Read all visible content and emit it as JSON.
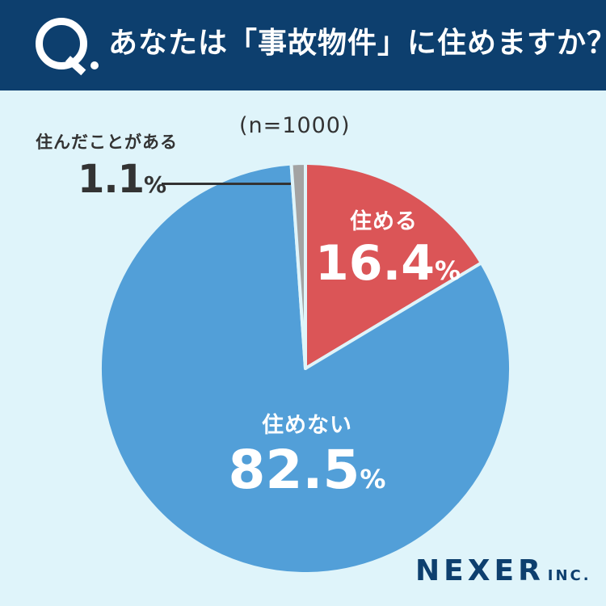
{
  "header": {
    "q_label": "Q",
    "question": "あなたは「事故物件」に住めますか？"
  },
  "chart_data": {
    "type": "pie",
    "title": "あなたは「事故物件」に住めますか？",
    "note": "(n=1000)",
    "slices": [
      {
        "label": "住める",
        "value": 16.4,
        "color": "#db5557"
      },
      {
        "label": "住めない",
        "value": 82.5,
        "color": "#529fd8"
      },
      {
        "label": "住んだことがある",
        "value": 1.1,
        "color": "#a3a3a3"
      }
    ],
    "value_suffix": "%"
  },
  "labels": {
    "live": {
      "name": "住める",
      "value": "16.4",
      "unit": "%"
    },
    "cannot": {
      "name": "住めない",
      "value": "82.5",
      "unit": "%"
    },
    "lived": {
      "name": "住んだことがある",
      "value": "1.1",
      "unit": "%"
    }
  },
  "logo": {
    "main": "NEXER",
    "sub": "INC."
  }
}
